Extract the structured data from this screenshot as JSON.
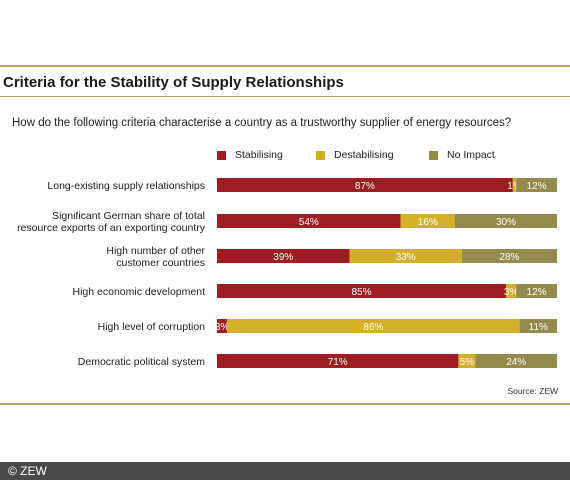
{
  "title": "Criteria for the Stability of Supply Relationships",
  "subtitle": "How do the following criteria characterise a country as a trustworthy supplier of energy resources?",
  "source": "Source: ZEW",
  "footer": "© ZEW",
  "colors": {
    "stabilising": "#9f1d22",
    "destabilising": "#d4b02a",
    "no_impact": "#948a4b",
    "rule": "#b8a46a"
  },
  "chart_data": {
    "type": "bar",
    "orientation": "horizontal",
    "stacked": true,
    "unit": "%",
    "categories": [
      [
        "Long-existing supply relationships"
      ],
      [
        "Significant German share of total",
        "resource exports of an exporting country"
      ],
      [
        "High number of other",
        "customer countries"
      ],
      [
        "High economic development"
      ],
      [
        "High level of corruption"
      ],
      [
        "Democratic political system"
      ]
    ],
    "series": [
      {
        "name": "Stabilising",
        "values": [
          87,
          54,
          39,
          85,
          3,
          71
        ],
        "labels": [
          "87%",
          "54%",
          "39%",
          "85%",
          "3%",
          "71%"
        ]
      },
      {
        "name": "Destabilising",
        "values": [
          1,
          16,
          33,
          3,
          86,
          5
        ],
        "labels": [
          "1%",
          "16%",
          "33%",
          "3%",
          "86%",
          "5%"
        ]
      },
      {
        "name": "No Impact",
        "values": [
          12,
          30,
          28,
          12,
          11,
          24
        ],
        "labels": [
          "12%",
          "30%",
          "28%",
          "12%",
          "11%",
          "24%"
        ]
      }
    ],
    "xlim": [
      0,
      100
    ],
    "legend_position": "top"
  }
}
